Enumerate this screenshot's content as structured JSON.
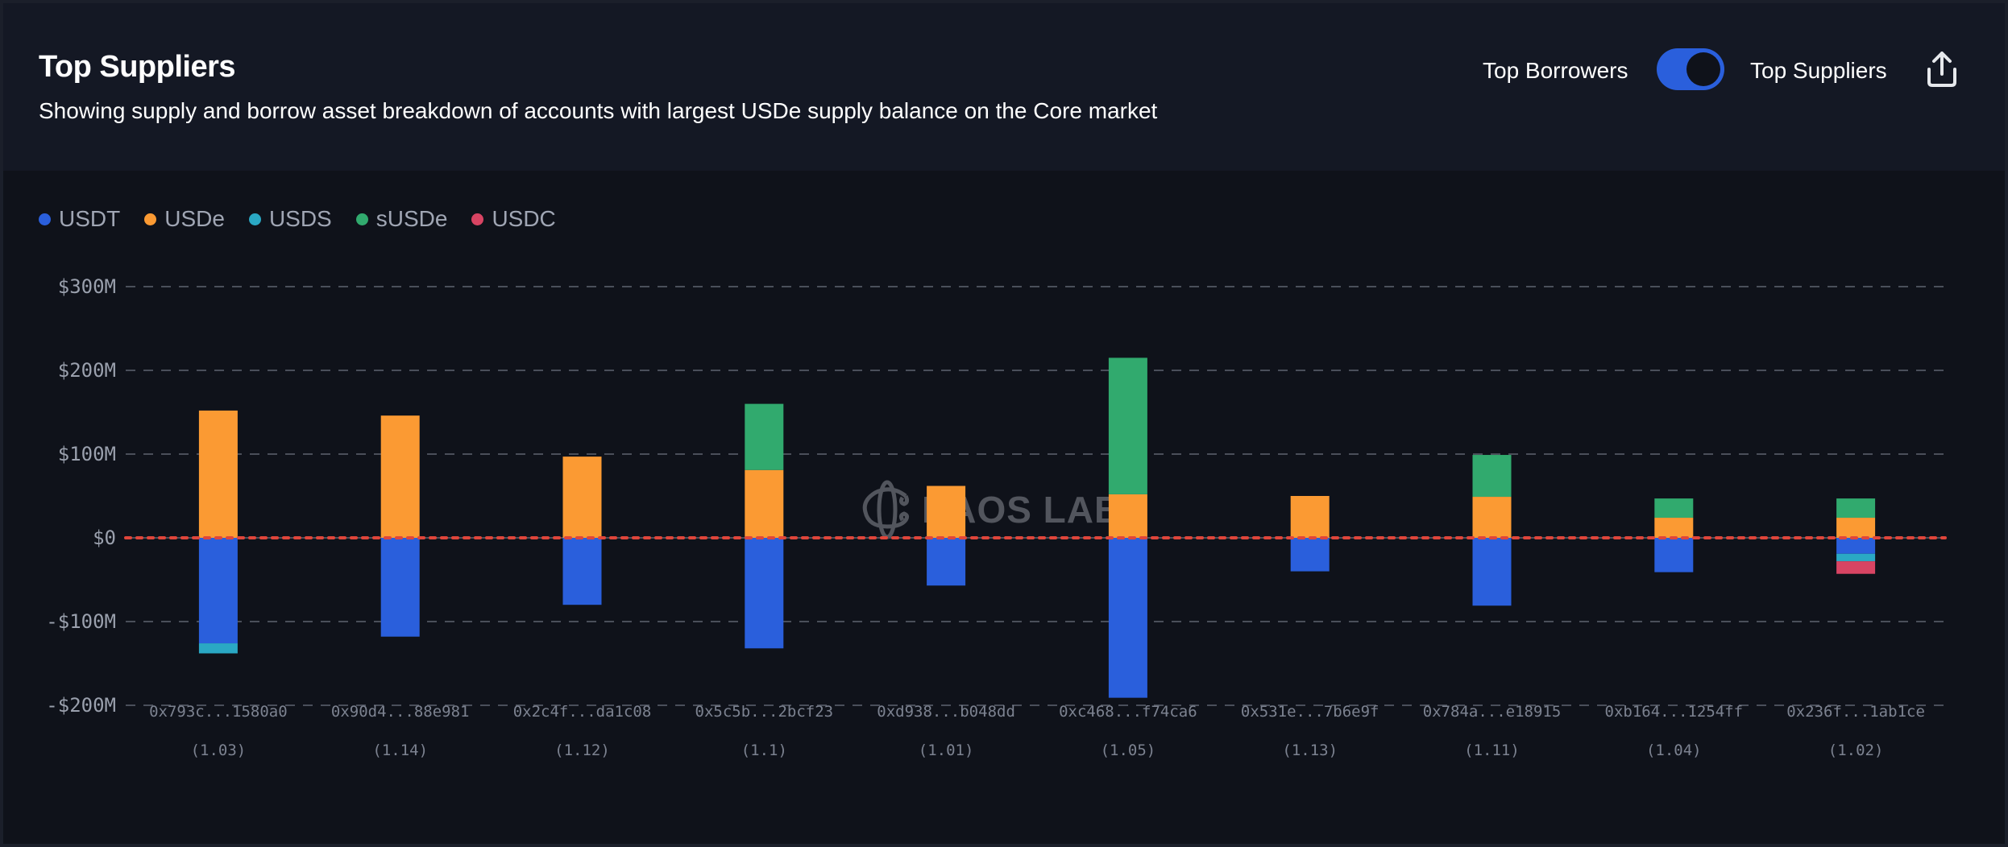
{
  "header": {
    "title": "Top Suppliers",
    "subtitle": "Showing supply and borrow asset breakdown of accounts with largest USDe supply balance on the Core market",
    "toggle_left_label": "Top Borrowers",
    "toggle_right_label": "Top Suppliers",
    "toggle_state": "Top Suppliers",
    "export_icon": "share-export-icon"
  },
  "watermark": {
    "text": "HAOS LABS",
    "icon": "chaos-labs-logo-icon"
  },
  "colors": {
    "USDT": "#2a5fdc",
    "USDe": "#fb9a33",
    "USDS": "#2aa8c4",
    "sUSDe": "#31aa6e",
    "USDC": "#d84463",
    "zero_line": "#e0453a",
    "grid": "#4a4f5a"
  },
  "chart_data": {
    "type": "bar",
    "stacked": true,
    "title": "Top Suppliers",
    "xlabel": "",
    "ylabel": "",
    "ylim": [
      -200,
      300
    ],
    "y_unit": "$M",
    "y_ticks": [
      300,
      200,
      100,
      0,
      -100,
      -200
    ],
    "y_tick_labels": [
      "$300M",
      "$200M",
      "$100M",
      "$0",
      "-$100M",
      "-$200M"
    ],
    "grid": true,
    "legend_position": "top-left",
    "legend": [
      "USDT",
      "USDe",
      "USDS",
      "sUSDe",
      "USDC"
    ],
    "categories": [
      "0x793c...1580a0",
      "0x90d4...88e981",
      "0x2c4f...da1c08",
      "0x5c5b...2bcf23",
      "0xd938...b048dd",
      "0xc468...f74ca6",
      "0x531e...7b6e9f",
      "0x784a...e18915",
      "0xb164...1254ff",
      "0x236f...1ab1ce"
    ],
    "health_factors": [
      "(1.03)",
      "(1.14)",
      "(1.12)",
      "(1.1)",
      "(1.01)",
      "(1.05)",
      "(1.13)",
      "(1.11)",
      "(1.04)",
      "(1.02)"
    ],
    "series": [
      {
        "name": "USDT",
        "values": [
          -126,
          -118,
          -80,
          -132,
          -57,
          -191,
          -40,
          -81,
          -41,
          -19
        ]
      },
      {
        "name": "USDe",
        "values": [
          152,
          146,
          97,
          81,
          62,
          52,
          50,
          49,
          24,
          24
        ]
      },
      {
        "name": "USDS",
        "values": [
          -12,
          0,
          0,
          0,
          0,
          0,
          0,
          0,
          0,
          -9
        ]
      },
      {
        "name": "sUSDe",
        "values": [
          0,
          0,
          0,
          79,
          0,
          163,
          0,
          50,
          23,
          23
        ]
      },
      {
        "name": "USDC",
        "values": [
          0,
          0,
          0,
          0,
          0,
          0,
          0,
          0,
          0,
          -15
        ]
      }
    ]
  }
}
